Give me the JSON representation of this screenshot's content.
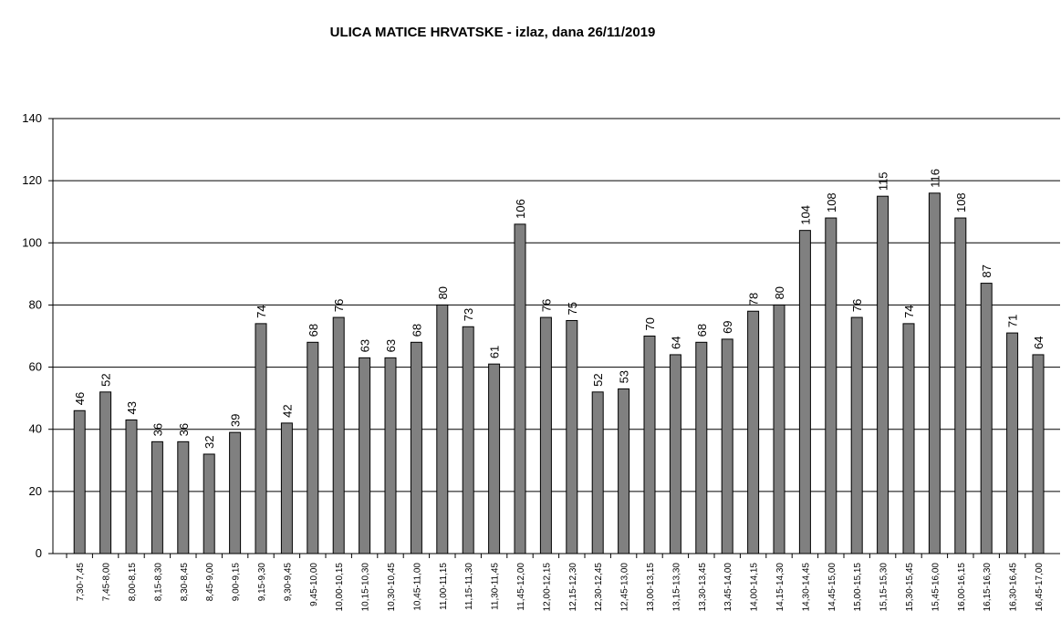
{
  "chart_data": {
    "type": "bar",
    "title": "ULICA MATICE HRVATSKE - izlaz, dana 26/11/2019",
    "categories": [
      "7,30-7,45",
      "7,45-8,00",
      "8,00-8,15",
      "8,15-8,30",
      "8,30-8,45",
      "8,45-9,00",
      "9,00-9,15",
      "9,15-9,30",
      "9,30-9,45",
      "9,45-10,00",
      "10,00-10,15",
      "10,15-10,30",
      "10,30-10,45",
      "10,45-11,00",
      "11,00-11,15",
      "11,15-11,30",
      "11,30-11,45",
      "11,45-12,00",
      "12,00-12,15",
      "12,15-12,30",
      "12,30-12,45",
      "12,45-13,00",
      "13,00-13,15",
      "13,15-13,30",
      "13,30-13,45",
      "13,45-14,00",
      "14,00-14,15",
      "14,15-14,30",
      "14,30-14,45",
      "14,45-15,00",
      "15,00-15,15",
      "15,15-15,30",
      "15,30-15,45",
      "15,45-16,00",
      "16,00-16,15",
      "16,15-16,30",
      "16,30-16,45",
      "16,45-17,00"
    ],
    "values": [
      46,
      52,
      43,
      36,
      36,
      32,
      39,
      74,
      42,
      68,
      76,
      63,
      63,
      68,
      80,
      73,
      61,
      106,
      76,
      75,
      52,
      53,
      70,
      64,
      68,
      69,
      78,
      80,
      104,
      108,
      76,
      115,
      74,
      116,
      108,
      87,
      71,
      64
    ],
    "color": "#808080",
    "ylim": [
      0,
      140
    ],
    "yticks": [
      0,
      20,
      40,
      60,
      80,
      100,
      120,
      140
    ],
    "grid": true
  }
}
